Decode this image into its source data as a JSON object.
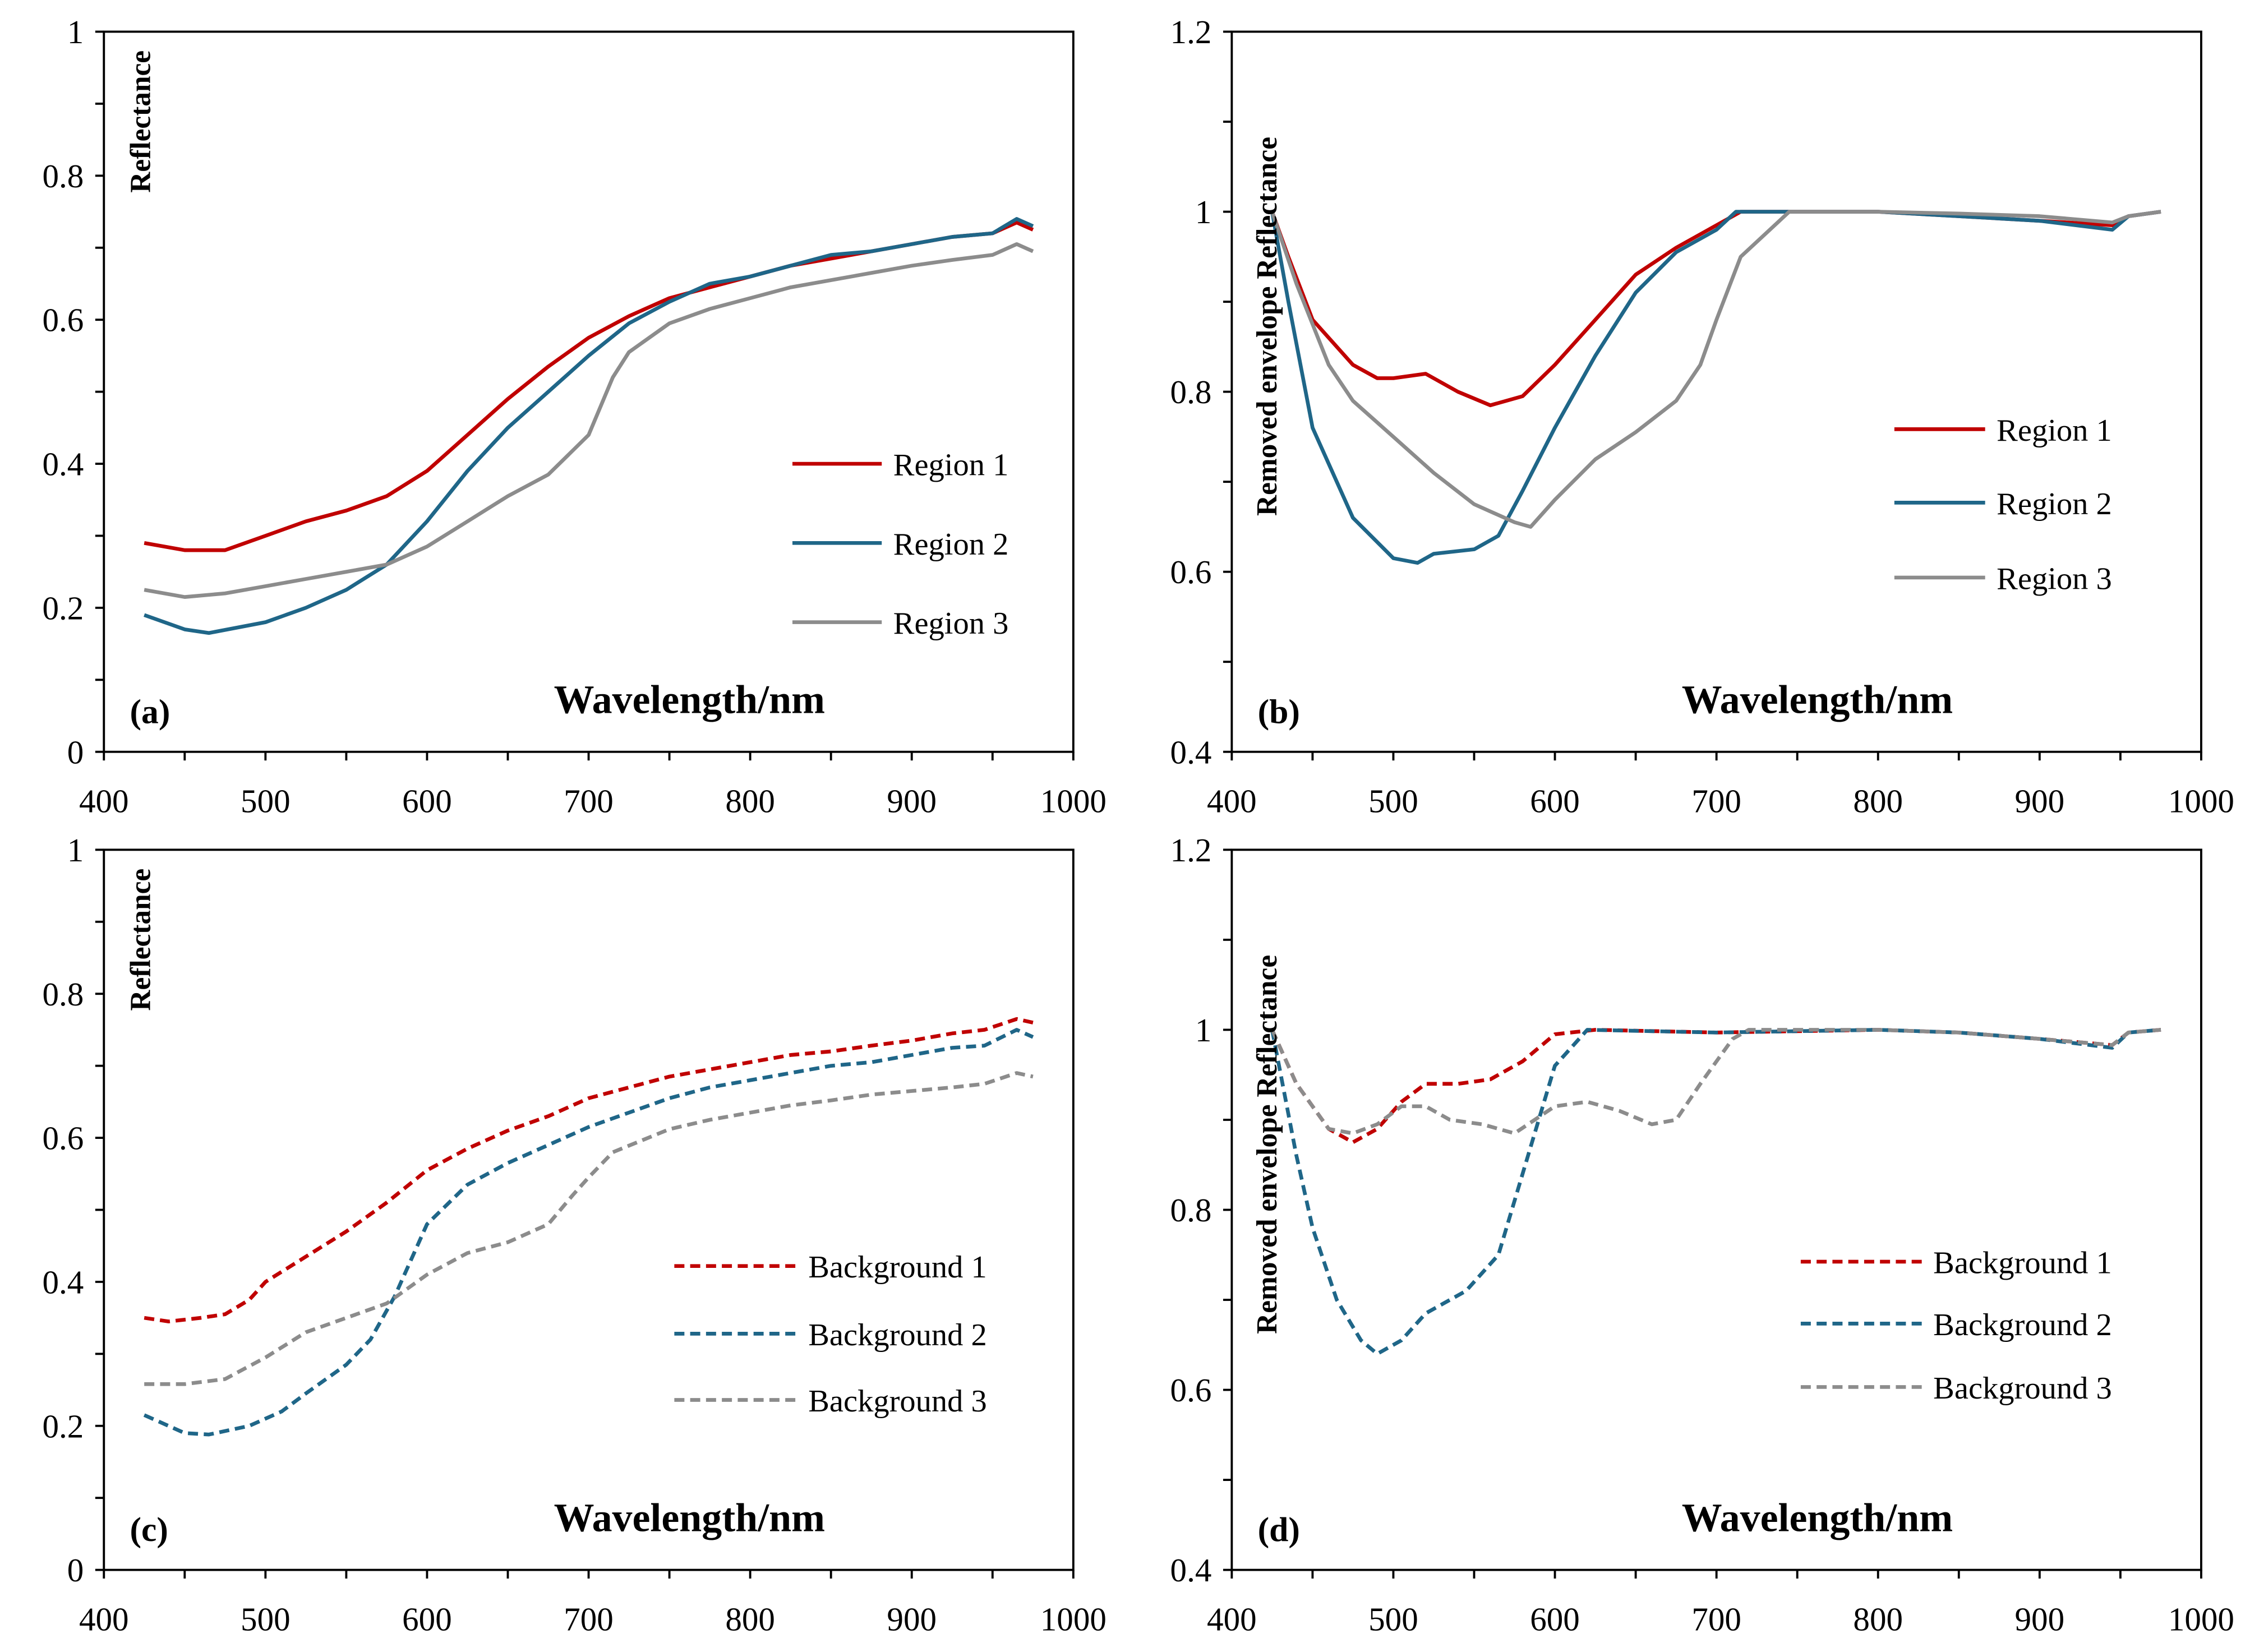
{
  "chart_data": [
    {
      "type": "line",
      "panel_label": "(a)",
      "xlabel": "Wavelength/nm",
      "ylabel": "Reflectance",
      "xlim": [
        400,
        1000
      ],
      "ylim": [
        0,
        1
      ],
      "xticks": [
        400,
        500,
        600,
        700,
        800,
        900,
        1000
      ],
      "yticks": [
        0,
        0.2,
        0.4,
        0.6,
        0.8,
        1
      ],
      "ytick_labels": [
        "0",
        "0.2",
        "0.4",
        "0.6",
        "0.8",
        "1"
      ],
      "grid": false,
      "legend": "right",
      "series": [
        {
          "name": "Region 1",
          "color": "#c00000",
          "dashed": false,
          "x": [
            425,
            450,
            475,
            500,
            525,
            550,
            575,
            600,
            625,
            650,
            675,
            700,
            725,
            750,
            775,
            800,
            825,
            850,
            875,
            900,
            925,
            950,
            965,
            975
          ],
          "y": [
            0.29,
            0.28,
            0.28,
            0.3,
            0.32,
            0.335,
            0.355,
            0.39,
            0.44,
            0.49,
            0.535,
            0.575,
            0.605,
            0.63,
            0.645,
            0.66,
            0.675,
            0.685,
            0.695,
            0.705,
            0.715,
            0.72,
            0.735,
            0.725
          ]
        },
        {
          "name": "Region 2",
          "color": "#1f6688",
          "dashed": false,
          "x": [
            425,
            450,
            465,
            500,
            525,
            550,
            575,
            600,
            625,
            650,
            675,
            700,
            725,
            750,
            775,
            800,
            825,
            850,
            875,
            900,
            925,
            950,
            965,
            975
          ],
          "y": [
            0.19,
            0.17,
            0.165,
            0.18,
            0.2,
            0.225,
            0.26,
            0.32,
            0.39,
            0.45,
            0.5,
            0.55,
            0.595,
            0.625,
            0.65,
            0.66,
            0.675,
            0.69,
            0.695,
            0.705,
            0.715,
            0.72,
            0.74,
            0.73
          ]
        },
        {
          "name": "Region 3",
          "color": "#8c8c8c",
          "dashed": false,
          "x": [
            425,
            450,
            475,
            500,
            525,
            550,
            575,
            600,
            625,
            650,
            675,
            700,
            715,
            725,
            750,
            775,
            800,
            825,
            850,
            875,
            900,
            925,
            950,
            965,
            975
          ],
          "y": [
            0.225,
            0.215,
            0.22,
            0.23,
            0.24,
            0.25,
            0.26,
            0.285,
            0.32,
            0.355,
            0.385,
            0.44,
            0.52,
            0.555,
            0.595,
            0.615,
            0.63,
            0.645,
            0.655,
            0.665,
            0.675,
            0.683,
            0.69,
            0.705,
            0.695
          ]
        }
      ]
    },
    {
      "type": "line",
      "panel_label": "(b)",
      "xlabel": "Wavelength/nm",
      "ylabel": "Removed envelope Reflectance",
      "xlim": [
        400,
        1000
      ],
      "ylim": [
        0.4,
        1.2
      ],
      "xticks": [
        400,
        500,
        600,
        700,
        800,
        900,
        1000
      ],
      "yticks": [
        0.4,
        0.6,
        0.8,
        1,
        1.2
      ],
      "ytick_labels": [
        "0.4",
        "0.6",
        "0.8",
        "1",
        "1.2"
      ],
      "grid": false,
      "legend": "right",
      "series": [
        {
          "name": "Region 1",
          "color": "#c00000",
          "dashed": false,
          "x": [
            425,
            435,
            450,
            475,
            490,
            500,
            520,
            540,
            560,
            580,
            600,
            625,
            650,
            675,
            700,
            715,
            750,
            800,
            850,
            900,
            945,
            955,
            975
          ],
          "y": [
            1.0,
            0.95,
            0.88,
            0.83,
            0.815,
            0.815,
            0.82,
            0.8,
            0.785,
            0.795,
            0.83,
            0.88,
            0.93,
            0.96,
            0.985,
            1.0,
            1.0,
            1.0,
            0.995,
            0.99,
            0.985,
            0.995,
            1.0
          ]
        },
        {
          "name": "Region 2",
          "color": "#1f6688",
          "dashed": false,
          "x": [
            425,
            435,
            450,
            475,
            500,
            515,
            525,
            550,
            565,
            580,
            600,
            625,
            650,
            675,
            700,
            712,
            750,
            800,
            850,
            900,
            945,
            955,
            975
          ],
          "y": [
            1.0,
            0.9,
            0.76,
            0.66,
            0.615,
            0.61,
            0.62,
            0.625,
            0.64,
            0.69,
            0.76,
            0.84,
            0.91,
            0.955,
            0.98,
            1.0,
            1.0,
            1.0,
            0.995,
            0.99,
            0.98,
            0.995,
            1.0
          ]
        },
        {
          "name": "Region 3",
          "color": "#8c8c8c",
          "dashed": false,
          "x": [
            425,
            440,
            460,
            475,
            500,
            525,
            550,
            575,
            585,
            600,
            625,
            650,
            675,
            690,
            700,
            715,
            745,
            800,
            850,
            900,
            945,
            955,
            975
          ],
          "y": [
            1.0,
            0.92,
            0.83,
            0.79,
            0.75,
            0.71,
            0.675,
            0.655,
            0.65,
            0.68,
            0.725,
            0.755,
            0.79,
            0.83,
            0.88,
            0.95,
            1.0,
            1.0,
            0.998,
            0.995,
            0.988,
            0.995,
            1.0
          ]
        }
      ]
    },
    {
      "type": "line",
      "panel_label": "(c)",
      "xlabel": "Wavelength/nm",
      "ylabel": "Reflectance",
      "xlim": [
        400,
        1000
      ],
      "ylim": [
        0,
        1
      ],
      "xticks": [
        400,
        500,
        600,
        700,
        800,
        900,
        1000
      ],
      "yticks": [
        0,
        0.2,
        0.4,
        0.6,
        0.8,
        1
      ],
      "ytick_labels": [
        "0",
        "0.2",
        "0.4",
        "0.6",
        "0.8",
        "1"
      ],
      "grid": false,
      "legend": "right",
      "series": [
        {
          "name": "Background 1",
          "color": "#c00000",
          "dashed": true,
          "x": [
            425,
            440,
            460,
            475,
            490,
            500,
            525,
            550,
            575,
            600,
            625,
            650,
            675,
            700,
            725,
            750,
            775,
            800,
            825,
            850,
            875,
            900,
            925,
            945,
            965,
            975
          ],
          "y": [
            0.35,
            0.345,
            0.35,
            0.355,
            0.375,
            0.4,
            0.435,
            0.47,
            0.51,
            0.555,
            0.585,
            0.61,
            0.63,
            0.655,
            0.67,
            0.685,
            0.695,
            0.705,
            0.715,
            0.72,
            0.728,
            0.735,
            0.745,
            0.75,
            0.765,
            0.76
          ]
        },
        {
          "name": "Background 2",
          "color": "#1f6688",
          "dashed": true,
          "x": [
            425,
            450,
            465,
            490,
            510,
            525,
            550,
            565,
            580,
            600,
            625,
            650,
            675,
            700,
            725,
            750,
            775,
            800,
            825,
            850,
            875,
            900,
            925,
            945,
            965,
            975
          ],
          "y": [
            0.215,
            0.19,
            0.188,
            0.2,
            0.22,
            0.245,
            0.285,
            0.32,
            0.38,
            0.48,
            0.535,
            0.565,
            0.59,
            0.615,
            0.635,
            0.655,
            0.67,
            0.68,
            0.69,
            0.7,
            0.705,
            0.715,
            0.725,
            0.728,
            0.75,
            0.74
          ]
        },
        {
          "name": "Background 3",
          "color": "#8c8c8c",
          "dashed": true,
          "x": [
            425,
            450,
            475,
            500,
            525,
            550,
            575,
            600,
            625,
            650,
            675,
            690,
            700,
            715,
            750,
            775,
            800,
            825,
            850,
            875,
            900,
            925,
            945,
            965,
            975
          ],
          "y": [
            0.258,
            0.258,
            0.265,
            0.295,
            0.33,
            0.35,
            0.37,
            0.41,
            0.44,
            0.455,
            0.48,
            0.52,
            0.545,
            0.58,
            0.612,
            0.625,
            0.635,
            0.645,
            0.652,
            0.66,
            0.665,
            0.67,
            0.675,
            0.69,
            0.685
          ]
        }
      ]
    },
    {
      "type": "line",
      "panel_label": "(d)",
      "xlabel": "Wavelength/nm",
      "ylabel": "Removed envelope Reflectance",
      "xlim": [
        400,
        1000
      ],
      "ylim": [
        0.4,
        1.2
      ],
      "xticks": [
        400,
        500,
        600,
        700,
        800,
        900,
        1000
      ],
      "yticks": [
        0.4,
        0.6,
        0.8,
        1,
        1.2
      ],
      "ytick_labels": [
        "0.4",
        "0.6",
        "0.8",
        "1",
        "1.2"
      ],
      "grid": false,
      "legend": "right",
      "series": [
        {
          "name": "Background 1",
          "color": "#c00000",
          "dashed": true,
          "x": [
            425,
            440,
            460,
            475,
            490,
            505,
            520,
            540,
            560,
            580,
            600,
            625,
            700,
            800,
            850,
            900,
            945,
            955,
            975
          ],
          "y": [
            1.0,
            0.94,
            0.89,
            0.875,
            0.89,
            0.92,
            0.94,
            0.94,
            0.945,
            0.965,
            0.995,
            1.0,
            0.997,
            1.0,
            0.997,
            0.99,
            0.983,
            0.997,
            1.0
          ]
        },
        {
          "name": "Background 2",
          "color": "#1f6688",
          "dashed": true,
          "x": [
            425,
            440,
            450,
            465,
            480,
            490,
            505,
            520,
            545,
            565,
            580,
            600,
            620,
            700,
            800,
            850,
            900,
            945,
            955,
            975
          ],
          "y": [
            1.0,
            0.86,
            0.78,
            0.7,
            0.655,
            0.64,
            0.655,
            0.685,
            0.71,
            0.75,
            0.84,
            0.96,
            1.0,
            0.997,
            1.0,
            0.997,
            0.99,
            0.98,
            0.997,
            1.0
          ]
        },
        {
          "name": "Background 3",
          "color": "#8c8c8c",
          "dashed": true,
          "x": [
            425,
            440,
            460,
            475,
            490,
            505,
            520,
            535,
            555,
            575,
            600,
            620,
            640,
            660,
            675,
            690,
            710,
            720,
            800,
            850,
            900,
            945,
            955,
            975
          ],
          "y": [
            1.0,
            0.94,
            0.89,
            0.885,
            0.895,
            0.915,
            0.915,
            0.9,
            0.895,
            0.885,
            0.915,
            0.92,
            0.91,
            0.895,
            0.9,
            0.94,
            0.99,
            1.0,
            1.0,
            0.997,
            0.99,
            0.983,
            0.997,
            1.0
          ]
        }
      ]
    }
  ]
}
